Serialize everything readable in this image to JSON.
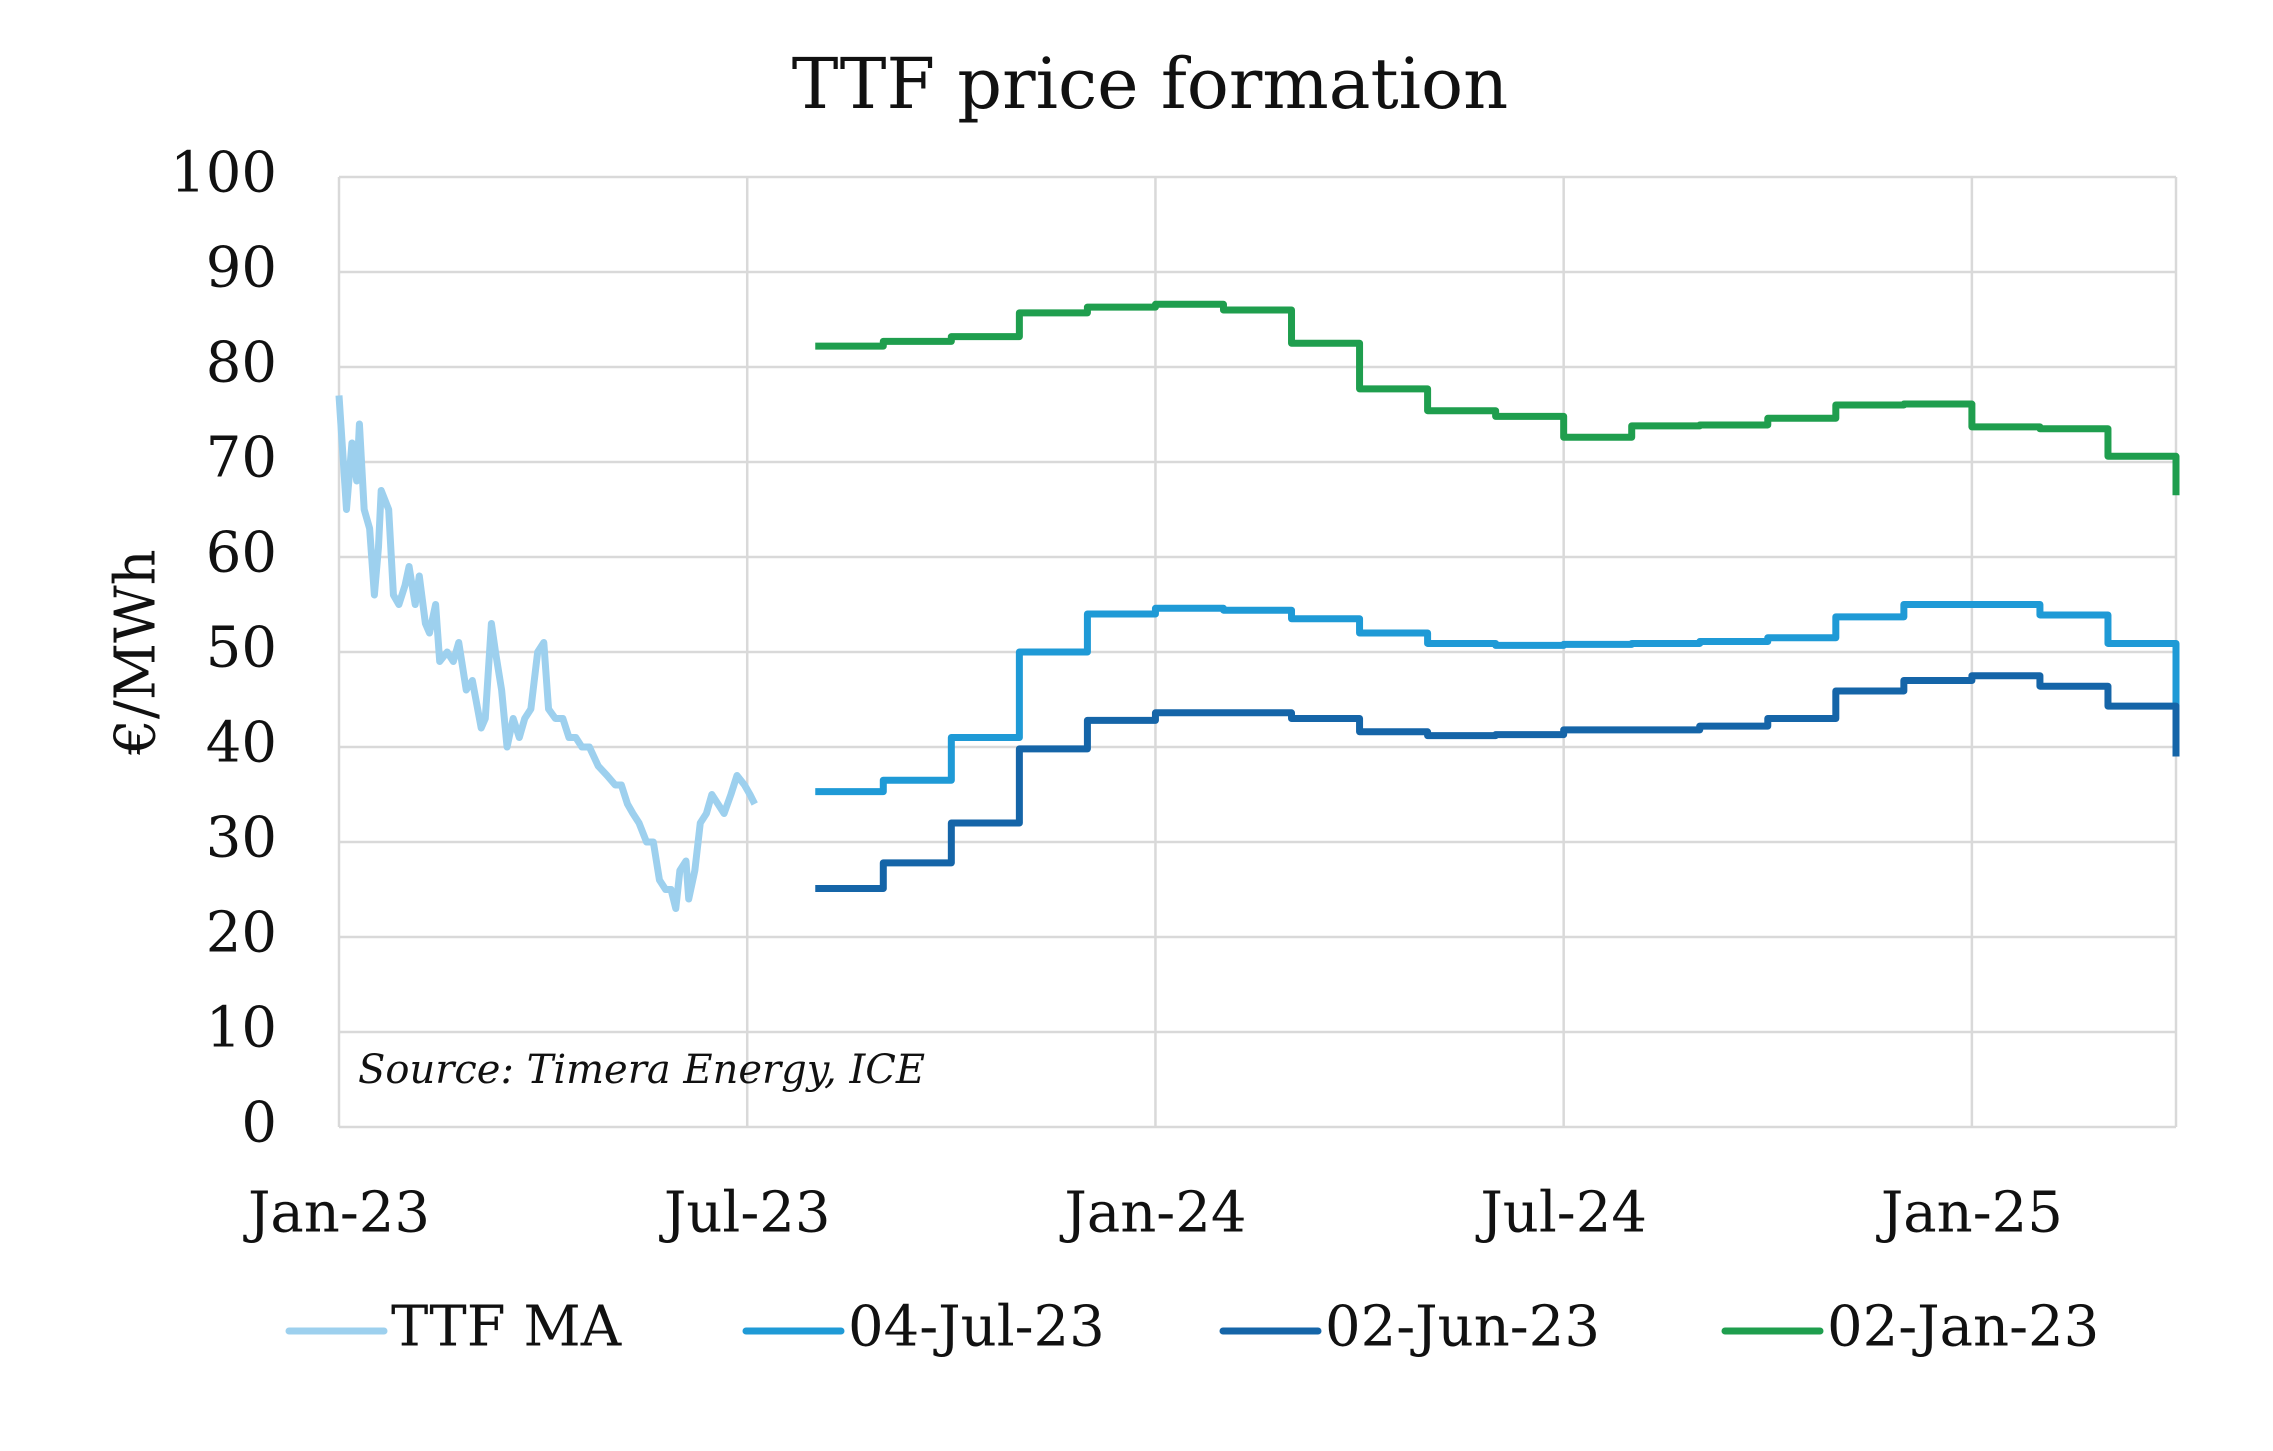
{
  "chart_data": {
    "type": "line",
    "title": "TTF price formation",
    "y_label": "€/MWh",
    "annotation": "Source: Timera Energy, ICE",
    "xlim": [
      0,
      27
    ],
    "xticks": [
      {
        "value": 0,
        "label": "Jan-23"
      },
      {
        "value": 6,
        "label": "Jul-23"
      },
      {
        "value": 12,
        "label": "Jan-24"
      },
      {
        "value": 18,
        "label": "Jul-24"
      },
      {
        "value": 24,
        "label": "Jan-25"
      }
    ],
    "ylim": [
      0,
      100
    ],
    "yticks": [
      0,
      10,
      20,
      30,
      40,
      50,
      60,
      70,
      80,
      90,
      100
    ],
    "grid": true,
    "legend": "bottom",
    "series": [
      {
        "name": "TTF MA",
        "color": "#9dd0ee",
        "step": false,
        "x": [
          0,
          0.11,
          0.19,
          0.26,
          0.3,
          0.37,
          0.45,
          0.52,
          0.58,
          0.62,
          0.73,
          0.8,
          0.88,
          0.97,
          1.03,
          1.12,
          1.18,
          1.27,
          1.33,
          1.42,
          1.48,
          1.59,
          1.68,
          1.76,
          1.87,
          1.96,
          2.09,
          2.15,
          2.24,
          2.3,
          2.39,
          2.47,
          2.56,
          2.65,
          2.73,
          2.82,
          2.92,
          3.01,
          3.08,
          3.18,
          3.29,
          3.38,
          3.48,
          3.57,
          3.68,
          3.81,
          3.94,
          4.06,
          4.15,
          4.24,
          4.32,
          4.41,
          4.52,
          4.62,
          4.71,
          4.8,
          4.88,
          4.95,
          5.01,
          5.1,
          5.14,
          5.23,
          5.31,
          5.4,
          5.48,
          5.57,
          5.66,
          5.76,
          5.85,
          5.96,
          6.04,
          6.11
        ],
        "values": [
          77,
          65,
          72,
          68,
          74,
          65,
          63,
          56,
          61,
          67,
          65,
          56,
          55,
          57,
          59,
          55,
          58,
          53,
          52,
          55,
          49,
          50,
          49,
          51,
          46,
          47,
          42,
          43,
          53,
          50,
          46,
          40,
          43,
          41,
          43,
          44,
          50,
          51,
          44,
          43,
          43,
          41,
          41,
          40,
          40,
          38,
          37,
          36,
          36,
          34,
          33,
          32,
          30,
          30,
          26,
          25,
          25,
          23,
          27,
          28,
          24,
          27,
          32,
          33,
          35,
          34,
          33,
          35,
          37,
          36,
          35,
          34
        ]
      },
      {
        "name": "04-Jul-23",
        "color": "#1f9ad6",
        "step": true,
        "x": [
          7,
          8,
          9,
          10,
          11,
          12,
          13,
          14,
          15,
          16,
          17,
          18,
          19,
          20,
          21,
          22,
          23,
          24,
          25,
          26,
          27
        ],
        "values": [
          35.3,
          36.5,
          41.0,
          50.0,
          54.0,
          54.6,
          54.4,
          53.5,
          52.0,
          50.9,
          50.7,
          50.8,
          50.9,
          51.1,
          51.5,
          53.7,
          55.0,
          55.0,
          53.9,
          50.9,
          43.0
        ]
      },
      {
        "name": "02-Jun-23",
        "color": "#1565a8",
        "step": true,
        "x": [
          7,
          8,
          9,
          10,
          11,
          12,
          13,
          14,
          15,
          16,
          17,
          18,
          19,
          20,
          21,
          22,
          23,
          24,
          25,
          26,
          27
        ],
        "values": [
          25.1,
          27.8,
          32.0,
          39.8,
          42.8,
          43.6,
          43.6,
          43.0,
          41.6,
          41.2,
          41.3,
          41.8,
          41.8,
          42.2,
          43.0,
          45.9,
          47.0,
          47.5,
          46.4,
          44.3,
          39.0
        ]
      },
      {
        "name": "02-Jan-23",
        "color": "#1f9e4e",
        "step": true,
        "x": [
          7,
          8,
          9,
          10,
          11,
          12,
          13,
          14,
          15,
          16,
          17,
          18,
          19,
          20,
          21,
          22,
          23,
          24,
          25,
          26,
          27
        ],
        "values": [
          82.2,
          82.7,
          83.2,
          85.7,
          86.3,
          86.6,
          86.0,
          82.5,
          77.7,
          75.4,
          74.8,
          72.6,
          73.8,
          73.9,
          74.6,
          76.0,
          76.1,
          73.7,
          73.5,
          70.6,
          66.5
        ]
      }
    ]
  }
}
